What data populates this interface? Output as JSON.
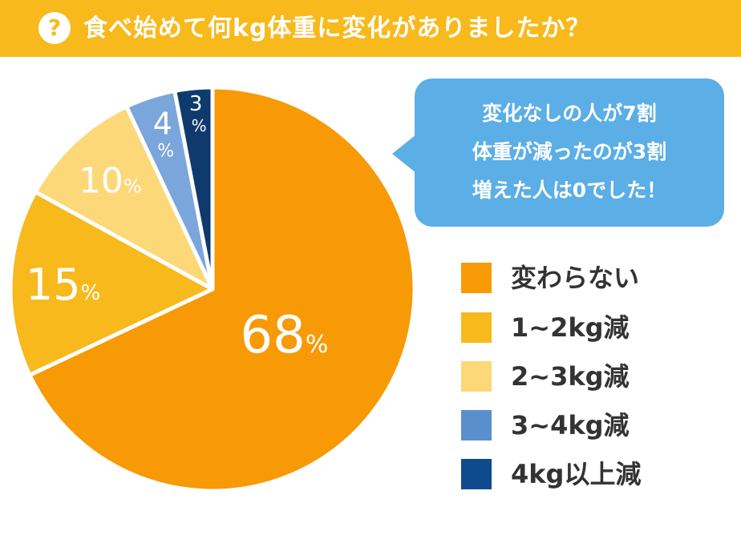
{
  "header": {
    "icon": "question-icon",
    "icon_glyph": "?",
    "title": "食べ始めて何kg体重に変化がありましたか？"
  },
  "callout": {
    "lines": [
      "変化なしの人が7割",
      "体重が減ったのが3割",
      "増えた人は0でした！"
    ]
  },
  "chart_data": {
    "type": "pie",
    "labels": [
      "変わらない",
      "1~2kg減",
      "2~3kg減",
      "3~4kg減",
      "4kg以上減"
    ],
    "values": [
      68,
      15,
      10,
      4,
      3
    ],
    "value_labels": [
      "68",
      "15",
      "10",
      "4",
      "3"
    ],
    "unit": "%",
    "colors": [
      "#f79a06",
      "#f7b91c",
      "#fcd878",
      "#7aa6dc",
      "#0f3a6d"
    ],
    "legend_colors": [
      "#f79a06",
      "#f7b91c",
      "#fcd878",
      "#5b8fcc",
      "#0f4a8e"
    ],
    "legend": "right"
  }
}
